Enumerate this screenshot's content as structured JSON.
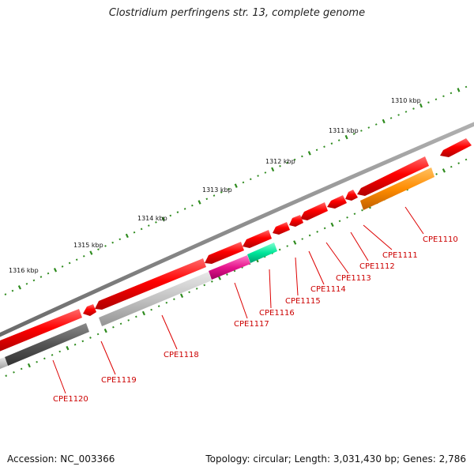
{
  "title": "Clostridium perfringens str. 13, complete genome",
  "footer": {
    "accession": "Accession: NC_003366",
    "summary": "Topology: circular; Length: 3,031,430 bp; Genes: 2,786"
  },
  "ruler": {
    "labels": [
      "1310 kbp",
      "1311 kbp",
      "1312 kbp",
      "1313 kbp",
      "1314 kbp",
      "1315 kbp",
      "1316 kbp"
    ]
  },
  "genes": {
    "labels": [
      "CPE1110",
      "CPE1111",
      "CPE1112",
      "CPE1113",
      "CPE1114",
      "CPE1115",
      "CPE1116",
      "CPE1117",
      "CPE1118",
      "CPE1119",
      "CPE1120"
    ]
  },
  "colors": {
    "red": "#ff0000",
    "orange": "#ff8c00",
    "teal": "#00e69a",
    "magenta": "#e6148c",
    "light_gray": "#c2c2c2",
    "dark_gray": "#555555",
    "backbone": "#8a8a8a",
    "tick": "#2e8b1e",
    "label": "#cc0000"
  }
}
